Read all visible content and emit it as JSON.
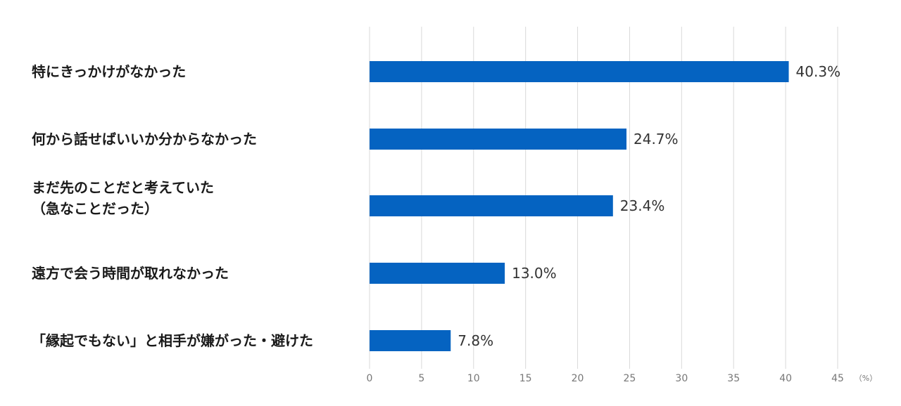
{
  "chart_data": {
    "type": "bar",
    "orientation": "horizontal",
    "categories": [
      [
        "特にきっかけがなかった"
      ],
      [
        "何から話せばいいか分からなかった"
      ],
      [
        "まだ先のことだと考えていた",
        "（急なことだった）"
      ],
      [
        "遠方で会う時間が取れなかった"
      ],
      [
        "「縁起でもない」と相手が嫌がった・避けた"
      ]
    ],
    "values": [
      40.3,
      24.7,
      23.4,
      13.0,
      7.8
    ],
    "value_labels": [
      "40.3%",
      "24.7%",
      "23.4%",
      "13.0%",
      "7.8%"
    ],
    "xlim": [
      0,
      45
    ],
    "xticks": [
      "0",
      "5",
      "10",
      "15",
      "20",
      "25",
      "30",
      "35",
      "40",
      "45"
    ],
    "xunit": "（%）",
    "grid": "vertical",
    "bar_color": "#0563C1"
  }
}
